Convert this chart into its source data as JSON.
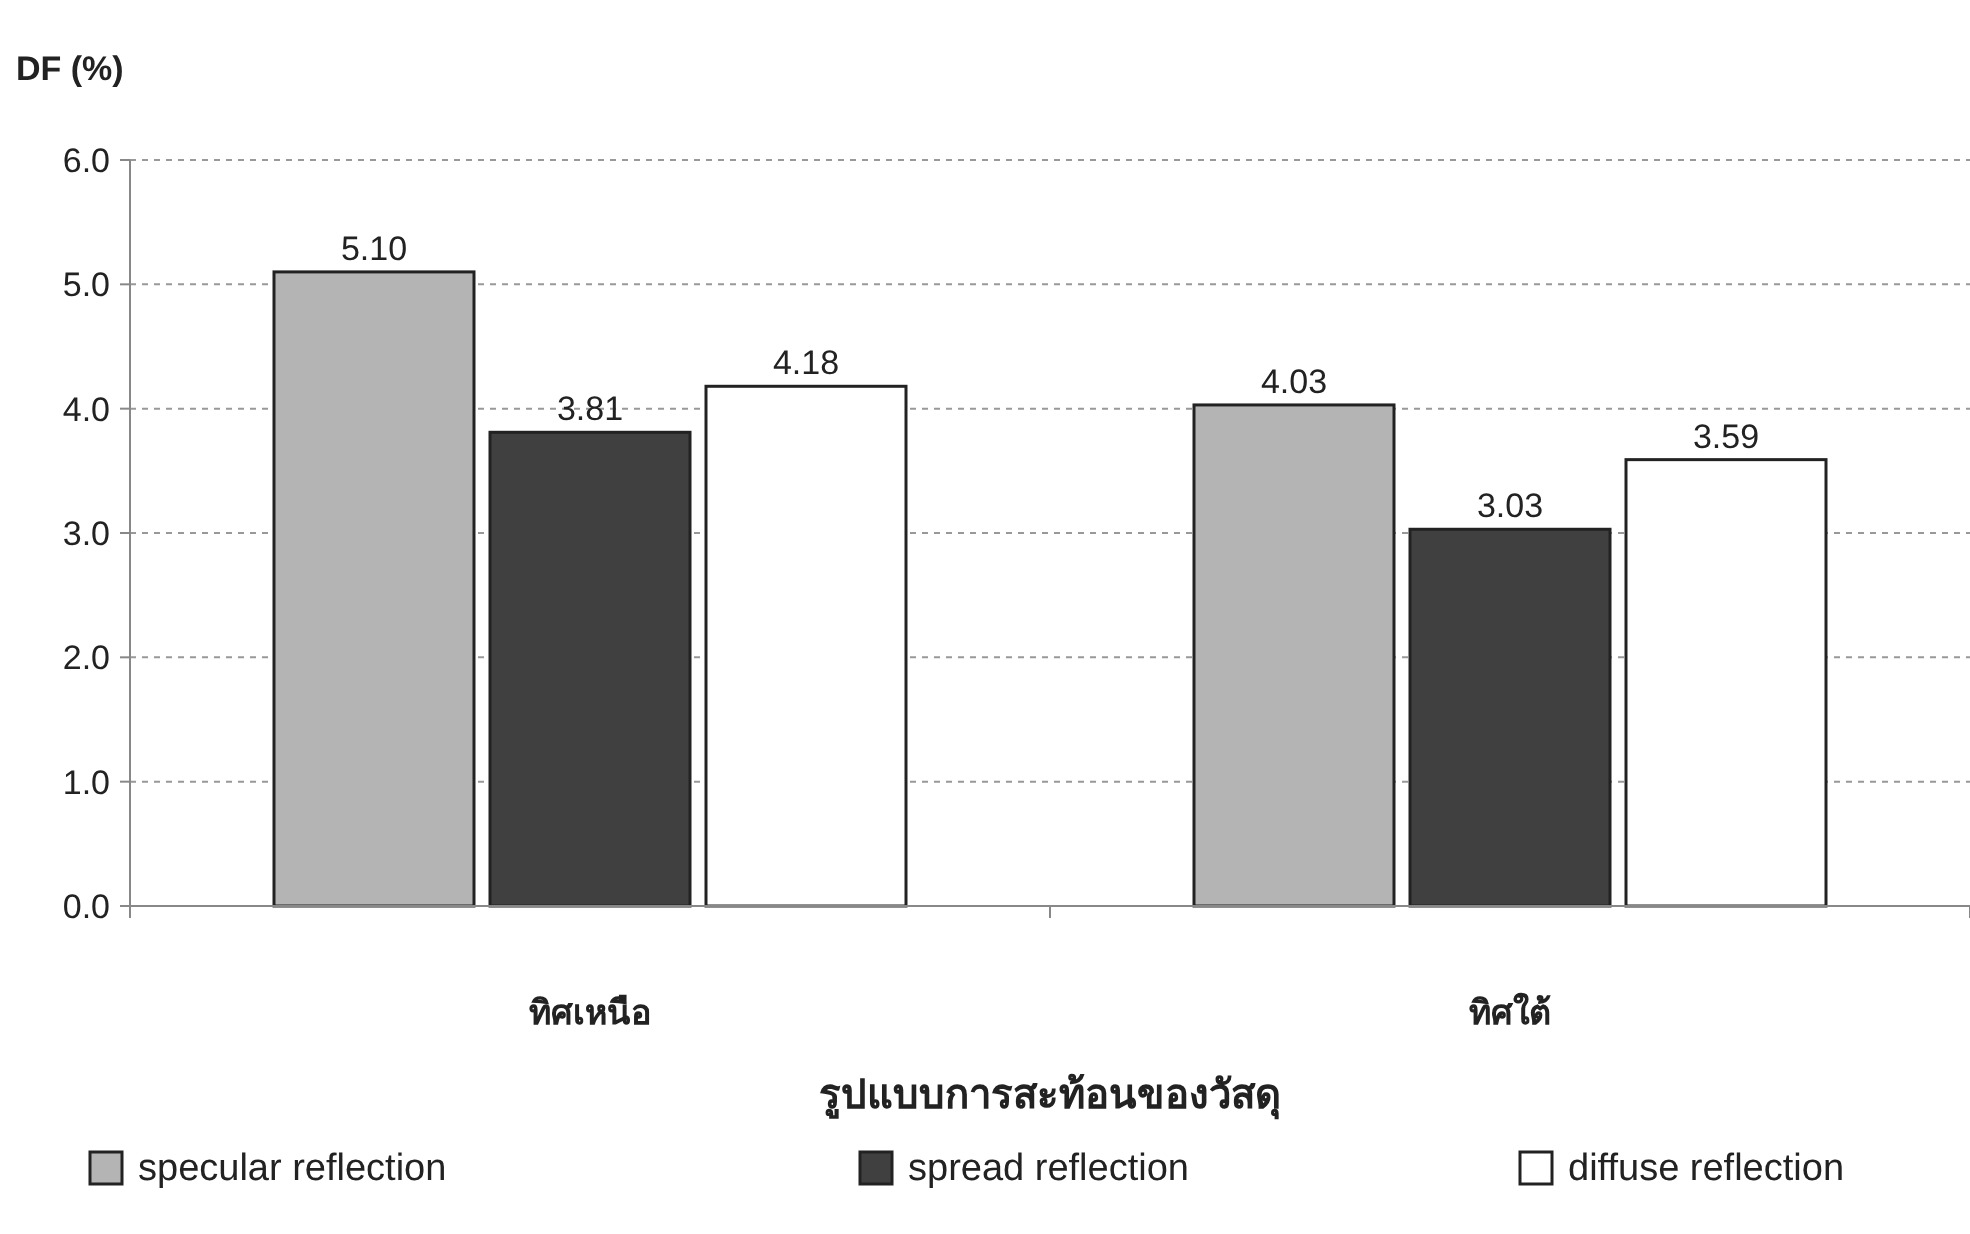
{
  "chart_data": {
    "type": "bar",
    "ylabel": "DF (%)",
    "xlabel": "รูปแบบการสะท้อนของวัสดุ",
    "categories": [
      "ทิศเหนือ",
      "ทิศใต้"
    ],
    "series": [
      {
        "name": "specular reflection",
        "color": "#b4b4b4",
        "values": [
          5.1,
          4.03
        ],
        "value_labels": [
          "5.10",
          "4.03"
        ]
      },
      {
        "name": "spread reflection",
        "color": "#404040",
        "values": [
          3.81,
          3.03
        ],
        "value_labels": [
          "3.81",
          "3.03"
        ]
      },
      {
        "name": "diffuse reflection",
        "color": "#ffffff",
        "values": [
          4.18,
          3.59
        ],
        "value_labels": [
          "4.18",
          "3.59"
        ]
      }
    ],
    "ylim": [
      0,
      6
    ],
    "yticks": [
      {
        "value": 0,
        "label": "0.0"
      },
      {
        "value": 1,
        "label": "1.0"
      },
      {
        "value": 2,
        "label": "2.0"
      },
      {
        "value": 3,
        "label": "3.0"
      },
      {
        "value": 4,
        "label": "4.0"
      },
      {
        "value": 5,
        "label": "5.0"
      },
      {
        "value": 6,
        "label": "6.0"
      }
    ],
    "grid": "y",
    "legend": "bottom"
  }
}
